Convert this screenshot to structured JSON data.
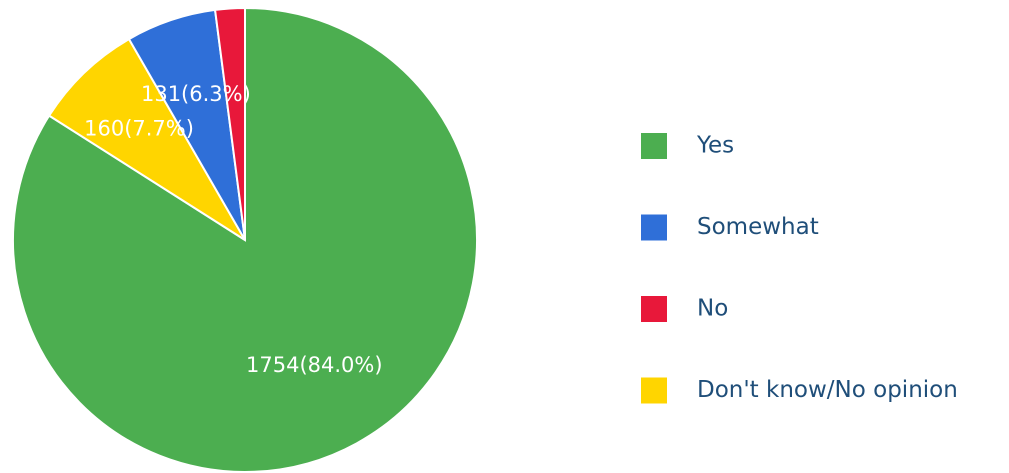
{
  "chart_data": {
    "type": "pie",
    "categories": [
      "Yes",
      "Somewhat",
      "No",
      "Don't know/No opinion"
    ],
    "values": [
      1754,
      131,
      43,
      160
    ],
    "value_labels": [
      "1754(84.0%)",
      "131(6.3%)",
      null,
      "160(7.7%)"
    ],
    "colors": [
      "#4cae50",
      "#2f6fd8",
      "#e8183a",
      "#ffd500"
    ],
    "legend": "right"
  }
}
